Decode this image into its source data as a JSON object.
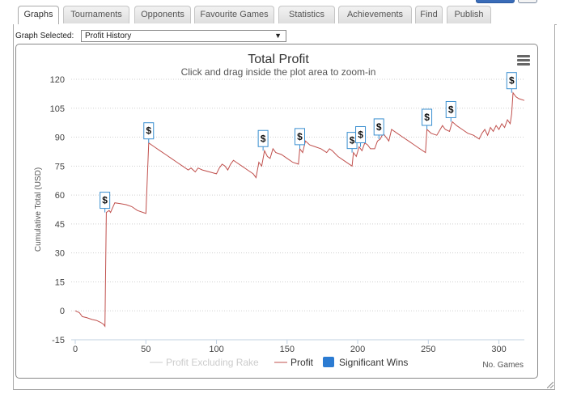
{
  "tabs": [
    {
      "label": "Graphs",
      "active": true
    },
    {
      "label": "Tournaments"
    },
    {
      "label": "Opponents"
    },
    {
      "label": "Favourite Games"
    },
    {
      "label": "Statistics"
    },
    {
      "label": "Achievements"
    },
    {
      "label": "Find"
    },
    {
      "label": "Publish"
    }
  ],
  "graph_selector": {
    "label": "Graph Selected:",
    "value": "Profit History"
  },
  "colors": {
    "profit": "#c0504d",
    "excluding_rake": "#cccccc",
    "significant_wins": "#2b7bd2",
    "flag_border": "#3a8fd0"
  },
  "chart_data": {
    "type": "line",
    "title": "Total Profit",
    "subtitle": "Click and drag inside the plot area to zoom-in",
    "xlabel": "No. Games",
    "ylabel": "Cumulative Total (USD)",
    "xlim": [
      0,
      318
    ],
    "ylim": [
      -15,
      120
    ],
    "xticks": [
      0,
      50,
      100,
      150,
      200,
      250,
      300
    ],
    "yticks": [
      -15,
      0,
      15,
      30,
      45,
      60,
      75,
      90,
      105,
      120
    ],
    "grid": true,
    "legend_position": "bottom",
    "legend": [
      "Profit Excluding Rake",
      "Profit",
      "Significant Wins"
    ],
    "series": [
      {
        "name": "Profit",
        "points": [
          [
            0,
            0
          ],
          [
            3,
            -1
          ],
          [
            5,
            -3
          ],
          [
            8,
            -3.5
          ],
          [
            12,
            -4.5
          ],
          [
            15,
            -5
          ],
          [
            18,
            -6
          ],
          [
            20,
            -7
          ],
          [
            21,
            -8
          ],
          [
            22,
            51
          ],
          [
            24,
            52
          ],
          [
            25,
            51
          ],
          [
            28,
            56
          ],
          [
            32,
            55.5
          ],
          [
            36,
            55
          ],
          [
            40,
            54
          ],
          [
            44,
            52
          ],
          [
            48,
            51
          ],
          [
            50,
            50.5
          ],
          [
            52,
            87
          ],
          [
            56,
            85
          ],
          [
            60,
            83
          ],
          [
            64,
            81
          ],
          [
            68,
            79
          ],
          [
            72,
            77
          ],
          [
            76,
            75
          ],
          [
            80,
            73
          ],
          [
            82,
            74
          ],
          [
            85,
            72
          ],
          [
            87,
            74
          ],
          [
            90,
            73
          ],
          [
            95,
            72
          ],
          [
            100,
            71
          ],
          [
            102,
            74
          ],
          [
            104,
            76
          ],
          [
            106,
            75
          ],
          [
            108,
            73
          ],
          [
            110,
            76
          ],
          [
            112,
            78
          ],
          [
            114,
            77
          ],
          [
            118,
            75
          ],
          [
            122,
            73
          ],
          [
            126,
            71
          ],
          [
            128,
            69
          ],
          [
            130,
            77
          ],
          [
            132,
            75
          ],
          [
            134,
            83
          ],
          [
            136,
            80
          ],
          [
            138,
            79
          ],
          [
            140,
            84
          ],
          [
            142,
            82
          ],
          [
            146,
            81
          ],
          [
            150,
            79
          ],
          [
            154,
            77
          ],
          [
            158,
            76
          ],
          [
            159,
            84
          ],
          [
            161,
            82
          ],
          [
            163,
            88
          ],
          [
            166,
            86
          ],
          [
            170,
            85
          ],
          [
            174,
            84
          ],
          [
            178,
            82
          ],
          [
            180,
            84
          ],
          [
            182,
            83
          ],
          [
            186,
            80
          ],
          [
            190,
            78
          ],
          [
            194,
            76
          ],
          [
            196,
            75
          ],
          [
            197,
            82
          ],
          [
            199,
            80
          ],
          [
            201,
            85
          ],
          [
            203,
            83
          ],
          [
            205,
            87
          ],
          [
            207,
            86
          ],
          [
            209,
            84
          ],
          [
            212,
            84
          ],
          [
            214,
            88
          ],
          [
            216,
            89
          ],
          [
            218,
            92
          ],
          [
            220,
            90
          ],
          [
            222,
            88
          ],
          [
            224,
            94
          ],
          [
            228,
            92
          ],
          [
            232,
            90
          ],
          [
            236,
            88
          ],
          [
            240,
            86
          ],
          [
            244,
            84
          ],
          [
            248,
            82
          ],
          [
            249,
            94
          ],
          [
            252,
            92
          ],
          [
            256,
            91
          ],
          [
            260,
            96
          ],
          [
            262,
            94
          ],
          [
            265,
            93
          ],
          [
            267,
            98
          ],
          [
            270,
            96
          ],
          [
            274,
            94
          ],
          [
            278,
            92
          ],
          [
            282,
            91
          ],
          [
            286,
            89
          ],
          [
            288,
            92
          ],
          [
            290,
            94
          ],
          [
            292,
            91
          ],
          [
            294,
            95
          ],
          [
            296,
            93
          ],
          [
            298,
            96
          ],
          [
            300,
            94
          ],
          [
            302,
            97
          ],
          [
            304,
            95
          ],
          [
            306,
            99
          ],
          [
            308,
            97
          ],
          [
            309,
            102
          ],
          [
            310,
            113
          ],
          [
            312,
            111
          ],
          [
            314,
            110
          ],
          [
            318,
            109
          ]
        ]
      }
    ],
    "flags": [
      {
        "x": 21,
        "y": 51,
        "title": "$"
      },
      {
        "x": 52,
        "y": 87,
        "title": "$"
      },
      {
        "x": 133,
        "y": 83,
        "title": "$"
      },
      {
        "x": 159,
        "y": 84,
        "title": "$"
      },
      {
        "x": 196,
        "y": 82,
        "title": "$"
      },
      {
        "x": 202,
        "y": 85,
        "title": "$"
      },
      {
        "x": 215,
        "y": 89,
        "title": "$"
      },
      {
        "x": 249,
        "y": 94,
        "title": "$"
      },
      {
        "x": 266,
        "y": 98,
        "title": "$"
      },
      {
        "x": 309,
        "y": 113,
        "title": "$"
      }
    ]
  }
}
